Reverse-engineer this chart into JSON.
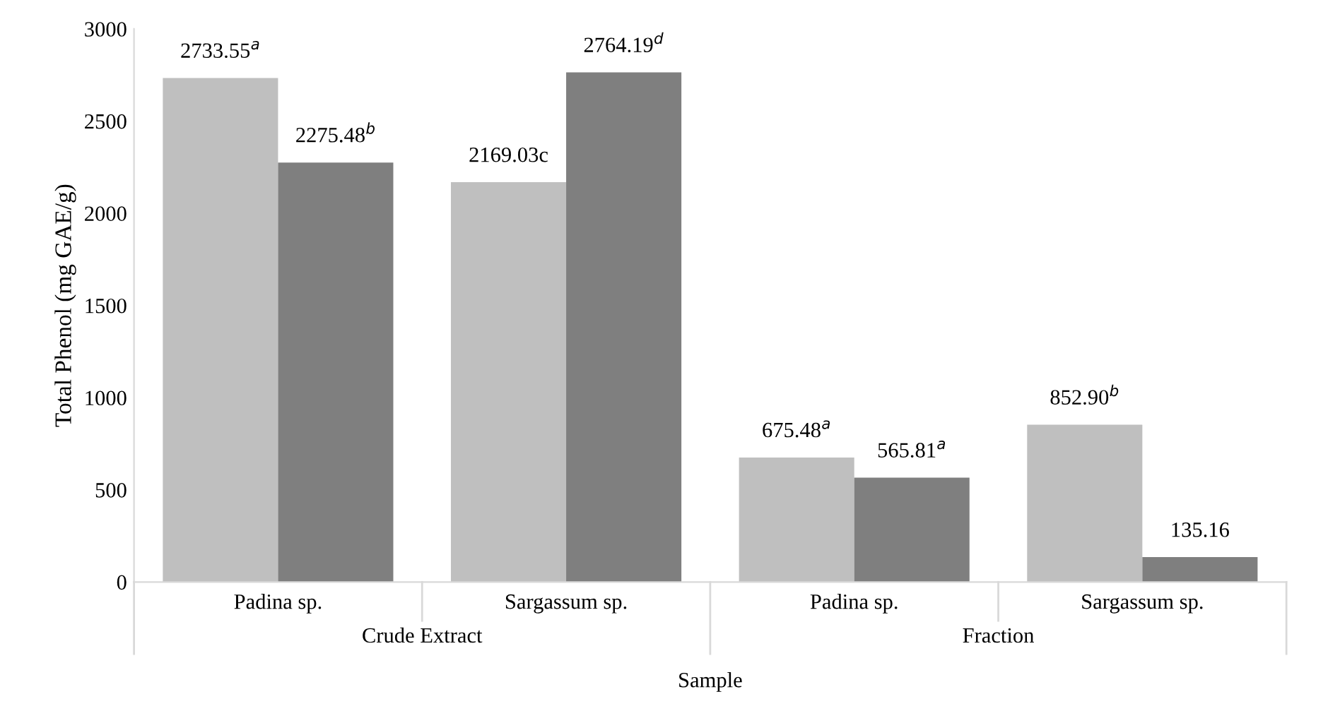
{
  "chart_data": {
    "type": "bar",
    "xlabel": "Sample",
    "ylabel": "Total Phenol (mg GAE/g)",
    "categories": [
      "Padina sp.",
      "Sargassum sp.",
      "Padina sp.",
      "Sargassum sp."
    ],
    "series": [
      {
        "color": "#bfbfbf",
        "values": [
          2733.55,
          2169.03,
          675.48,
          852.9
        ],
        "value_labels": [
          "2733.55$^{a}$",
          "2169.03c",
          "675.48$^{a}$",
          "852.90$^{b}$"
        ]
      },
      {
        "color": "#7f7f7f",
        "values": [
          2275.48,
          2764.19,
          565.81,
          135.16
        ],
        "value_labels": [
          "2275.48$^{b}$",
          "2764.19$^{d}$",
          "565.81$^{a}$",
          "135.16"
        ]
      }
    ],
    "annotations": [
      "Crude Extract",
      "Fraction"
    ],
    "ylim": [
      0,
      3000
    ],
    "yticks": [
      0,
      500,
      1000,
      1500,
      2000,
      2500,
      3000
    ],
    "grid": false,
    "legend": false
  }
}
